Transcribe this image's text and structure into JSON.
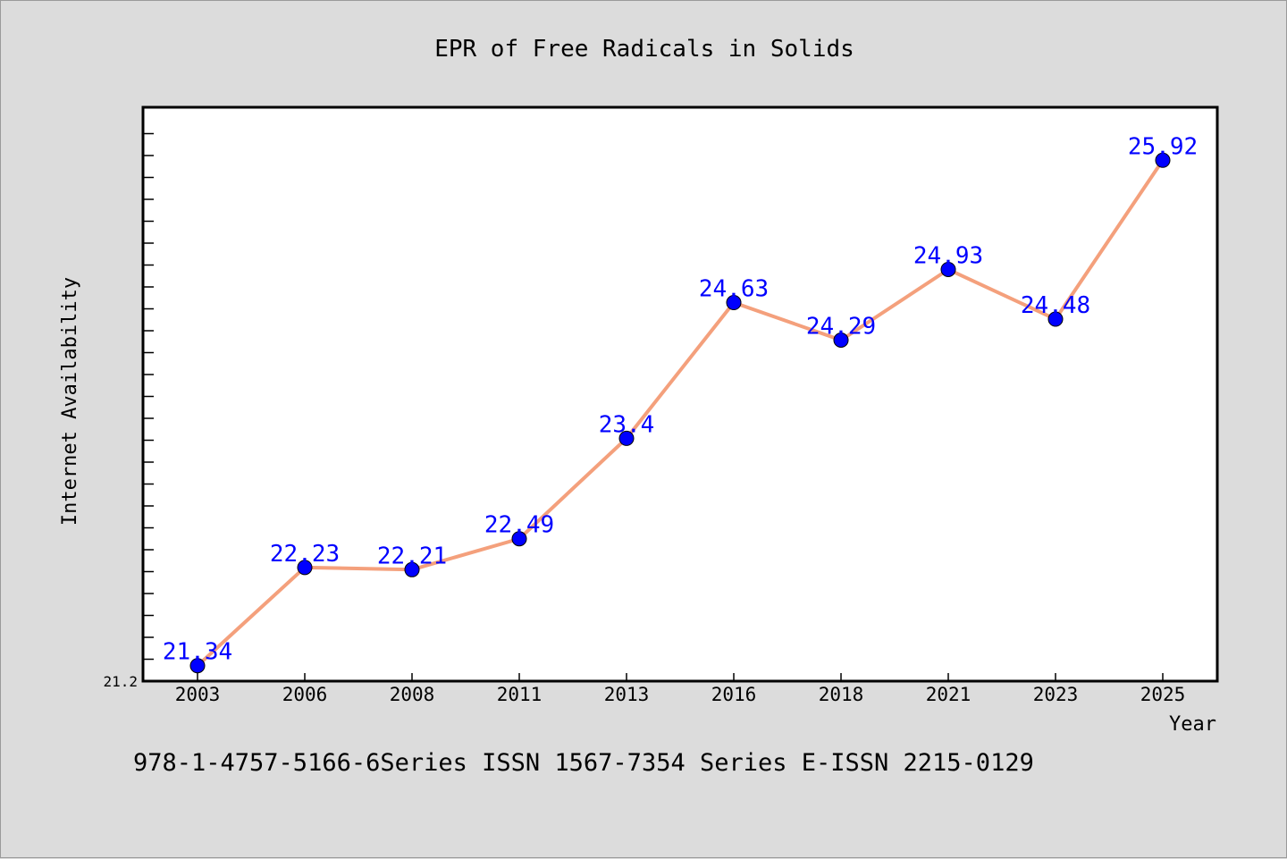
{
  "chart_data": {
    "type": "line",
    "title": "EPR of Free Radicals in Solids",
    "xlabel": "Year",
    "ylabel": "Internet Availability",
    "categories": [
      "2003",
      "2006",
      "2008",
      "2011",
      "2013",
      "2016",
      "2018",
      "2021",
      "2023",
      "2025"
    ],
    "series": [
      {
        "values": [
          21.34,
          22.23,
          22.21,
          22.49,
          23.4,
          24.63,
          24.29,
          24.93,
          24.48,
          25.92
        ]
      }
    ],
    "data_labels": [
      "21.34",
      "22.23",
      "22.21",
      "22.49",
      "23.4",
      "24.63",
      "24.29",
      "24.93",
      "24.48",
      "25.92"
    ],
    "ylim": [
      21.2,
      26.4
    ],
    "yticks": [
      "21.2"
    ],
    "grid": false,
    "legend": "none",
    "colors": {
      "line": "#f4a07c",
      "marker": "#0000ff",
      "label": "#0000ff",
      "plot_bg": "#ffffff",
      "page_bg": "#dcdcdc"
    }
  },
  "footer": {
    "text": "978-1-4757-5166-6Series ISSN 1567-7354 Series E-ISSN 2215-0129"
  }
}
